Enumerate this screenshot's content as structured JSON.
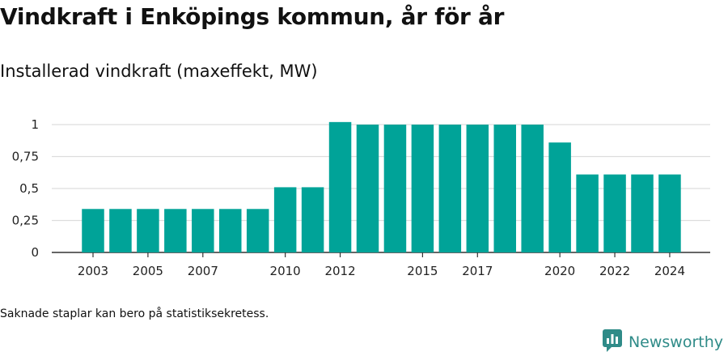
{
  "title": "Vindkraft i Enköpings kommun, år för år",
  "subtitle": "Installerad vindkraft (maxeffekt, MW)",
  "footnote": "Saknade staplar kan bero på statistiksekretess.",
  "brand": {
    "name": "Newsworthy",
    "icon": "newsworthy-logo-icon"
  },
  "colors": {
    "bar": "#00a398",
    "grid": "#dddddd",
    "axis": "#333333",
    "brand": "#2f8b88"
  },
  "chart_data": {
    "type": "bar",
    "title": "",
    "xlabel": "",
    "ylabel": "",
    "ylim": [
      0,
      1
    ],
    "grid": true,
    "categories": [
      "2003",
      "2004",
      "2005",
      "2006",
      "2007",
      "2008",
      "2009",
      "2010",
      "2011",
      "2012",
      "2013",
      "2014",
      "2015",
      "2016",
      "2017",
      "2018",
      "2019",
      "2020",
      "2021",
      "2022",
      "2023",
      "2024"
    ],
    "values": [
      0.34,
      0.34,
      0.34,
      0.34,
      0.34,
      0.34,
      0.34,
      0.51,
      0.51,
      1.02,
      1.0,
      1.0,
      1.0,
      1.0,
      1.0,
      1.0,
      1.0,
      0.86,
      0.61,
      0.61,
      0.61,
      0.61
    ],
    "x_tick_labels": [
      "2003",
      "2005",
      "2007",
      "2010",
      "2012",
      "2015",
      "2017",
      "2020",
      "2022",
      "2024"
    ],
    "y_ticks": [
      0,
      0.25,
      0.5,
      0.75,
      1
    ],
    "y_tick_labels": [
      "0",
      "0,25",
      "0,5",
      "0,75",
      "1"
    ]
  }
}
